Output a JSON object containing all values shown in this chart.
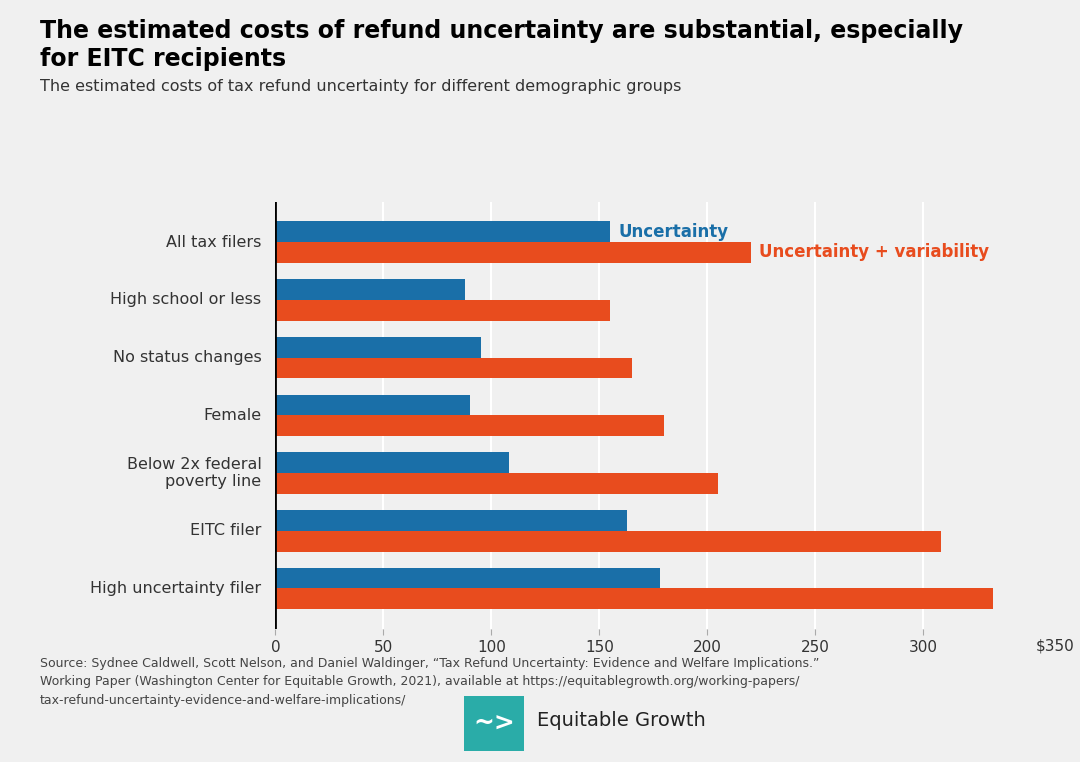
{
  "title_line1": "The estimated costs of refund uncertainty are substantial, especially",
  "title_line2": "for EITC recipients",
  "subtitle": "The estimated costs of tax refund uncertainty for different demographic groups",
  "categories": [
    "All tax filers",
    "High school or less",
    "No status changes",
    "Female",
    "Below 2x federal\npoverty line",
    "EITC filer",
    "High uncertainty filer"
  ],
  "uncertainty": [
    155,
    88,
    95,
    90,
    108,
    163,
    178
  ],
  "uncertainty_variability": [
    220,
    155,
    165,
    180,
    205,
    308,
    332
  ],
  "color_blue": "#1a6fa8",
  "color_orange": "#e84c1e",
  "bg_color": "#f0f0f0",
  "xlim_max": 350,
  "xticks": [
    0,
    50,
    100,
    150,
    200,
    250,
    300
  ],
  "source_text": "Source: Sydnee Caldwell, Scott Nelson, and Daniel Waldinger, “Tax Refund Uncertainty: Evidence and Welfare Implications.”\nWorking Paper (Washington Center for Equitable Growth, 2021), available at https://equitablegrowth.org/working-papers/\ntax-refund-uncertainty-evidence-and-welfare-implications/",
  "legend_uncertainty": "Uncertainty",
  "legend_uncertainty_variability": "Uncertainty + variability",
  "bar_height": 0.36,
  "logo_color": "#2aaca8",
  "brand_text": "Equitable Growth",
  "xlabel_last": "$350"
}
